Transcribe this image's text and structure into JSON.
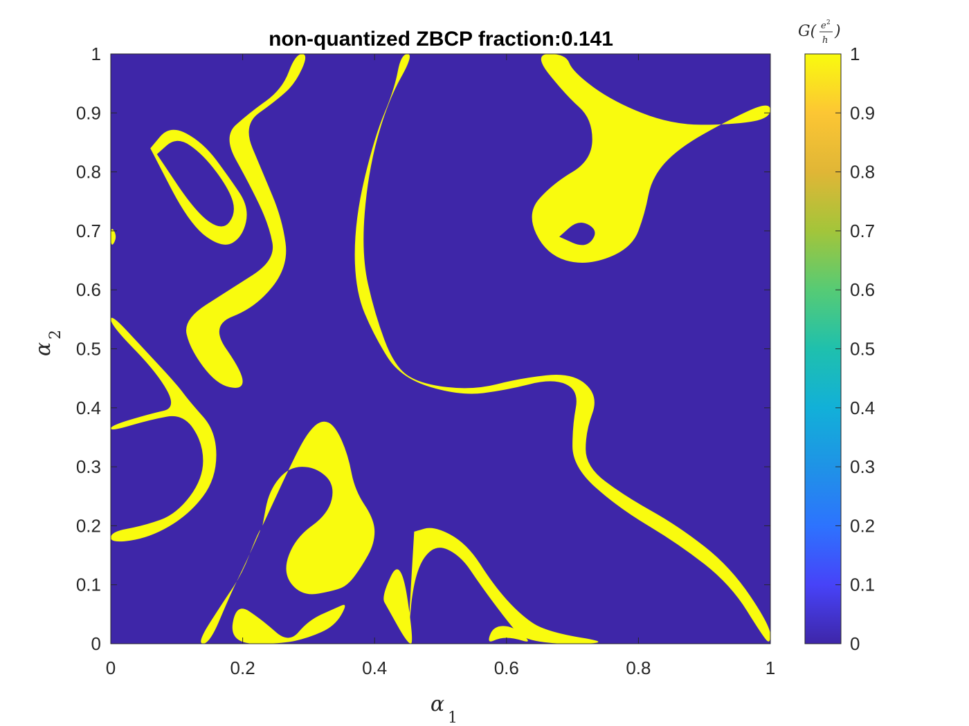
{
  "chart_data": {
    "type": "heatmap",
    "title": "non-quantized ZBCP fraction:0.141",
    "xlabel": {
      "base": "α",
      "sub": "1"
    },
    "ylabel": {
      "base": "α",
      "sub": "2"
    },
    "xlim": [
      0,
      1
    ],
    "ylim": [
      0,
      1
    ],
    "xticks": [
      "0",
      "0.2",
      "0.4",
      "0.6",
      "0.8",
      "1"
    ],
    "yticks": [
      "0",
      "0.1",
      "0.2",
      "0.3",
      "0.4",
      "0.5",
      "0.6",
      "0.7",
      "0.8",
      "0.9",
      "1"
    ],
    "grid": false,
    "colorbar": {
      "label": {
        "prefix": "G(",
        "numerator": "e",
        "exponent": "2",
        "denominator": "h",
        "suffix": ")"
      },
      "range": [
        0,
        1
      ],
      "ticks": [
        "0",
        "0.1",
        "0.2",
        "0.3",
        "0.4",
        "0.5",
        "0.6",
        "0.7",
        "0.8",
        "0.9",
        "1"
      ],
      "colormap": "parula"
    },
    "background_value": 0,
    "region_value": 1,
    "colors": {
      "low": "#3e26a8",
      "high": "#f9fb0e"
    },
    "regions": [
      {
        "name": "left-top-ring",
        "outer": [
          [
            0.06,
            0.84
          ],
          [
            0.09,
            0.88
          ],
          [
            0.14,
            0.85
          ],
          [
            0.18,
            0.79
          ],
          [
            0.21,
            0.74
          ],
          [
            0.2,
            0.69
          ],
          [
            0.17,
            0.67
          ],
          [
            0.12,
            0.71
          ],
          [
            0.06,
            0.84
          ]
        ],
        "inner": [
          [
            0.07,
            0.83
          ],
          [
            0.1,
            0.86
          ],
          [
            0.14,
            0.83
          ],
          [
            0.18,
            0.77
          ],
          [
            0.19,
            0.73
          ],
          [
            0.17,
            0.7
          ],
          [
            0.13,
            0.73
          ],
          [
            0.07,
            0.83
          ]
        ]
      },
      {
        "name": "s-curve-upper",
        "points": [
          [
            0.3,
            1.0
          ],
          [
            0.28,
            0.95
          ],
          [
            0.25,
            0.92
          ],
          [
            0.2,
            0.88
          ],
          [
            0.23,
            0.8
          ],
          [
            0.26,
            0.72
          ],
          [
            0.27,
            0.64
          ],
          [
            0.22,
            0.57
          ],
          [
            0.15,
            0.54
          ],
          [
            0.2,
            0.46
          ],
          [
            0.2,
            0.43
          ],
          [
            0.16,
            0.44
          ],
          [
            0.12,
            0.5
          ],
          [
            0.11,
            0.55
          ],
          [
            0.18,
            0.6
          ],
          [
            0.25,
            0.65
          ],
          [
            0.24,
            0.71
          ],
          [
            0.21,
            0.78
          ],
          [
            0.17,
            0.86
          ],
          [
            0.21,
            0.9
          ],
          [
            0.26,
            0.94
          ],
          [
            0.28,
            1.0
          ]
        ]
      },
      {
        "name": "left-lower-loop",
        "points": [
          [
            0.0,
            0.56
          ],
          [
            0.05,
            0.5
          ],
          [
            0.1,
            0.44
          ],
          [
            0.12,
            0.41
          ],
          [
            0.16,
            0.36
          ],
          [
            0.16,
            0.28
          ],
          [
            0.12,
            0.22
          ],
          [
            0.06,
            0.18
          ],
          [
            0.0,
            0.17
          ],
          [
            0.0,
            0.19
          ],
          [
            0.05,
            0.2
          ],
          [
            0.1,
            0.22
          ],
          [
            0.14,
            0.28
          ],
          [
            0.14,
            0.34
          ],
          [
            0.11,
            0.39
          ],
          [
            0.06,
            0.38
          ],
          [
            0.0,
            0.36
          ],
          [
            0.0,
            0.37
          ],
          [
            0.06,
            0.39
          ],
          [
            0.1,
            0.4
          ],
          [
            0.07,
            0.46
          ],
          [
            0.0,
            0.54
          ]
        ]
      },
      {
        "name": "left-notch",
        "points": [
          [
            0.0,
            0.71
          ],
          [
            0.01,
            0.69
          ],
          [
            0.0,
            0.67
          ]
        ]
      },
      {
        "name": "central-curve",
        "points": [
          [
            0.46,
            1.0
          ],
          [
            0.42,
            0.92
          ],
          [
            0.39,
            0.8
          ],
          [
            0.38,
            0.66
          ],
          [
            0.4,
            0.56
          ],
          [
            0.43,
            0.47
          ],
          [
            0.47,
            0.44
          ],
          [
            0.55,
            0.43
          ],
          [
            0.62,
            0.45
          ],
          [
            0.7,
            0.46
          ],
          [
            0.74,
            0.42
          ],
          [
            0.72,
            0.36
          ],
          [
            0.72,
            0.3
          ],
          [
            0.78,
            0.25
          ],
          [
            0.86,
            0.2
          ],
          [
            0.94,
            0.13
          ],
          [
            1.0,
            0.03
          ],
          [
            1.0,
            0.0
          ],
          [
            0.99,
            0.01
          ],
          [
            0.94,
            0.1
          ],
          [
            0.86,
            0.17
          ],
          [
            0.77,
            0.23
          ],
          [
            0.7,
            0.3
          ],
          [
            0.7,
            0.37
          ],
          [
            0.71,
            0.43
          ],
          [
            0.67,
            0.45
          ],
          [
            0.6,
            0.43
          ],
          [
            0.53,
            0.42
          ],
          [
            0.44,
            0.45
          ],
          [
            0.4,
            0.52
          ],
          [
            0.37,
            0.6
          ],
          [
            0.37,
            0.72
          ],
          [
            0.4,
            0.86
          ],
          [
            0.43,
            0.94
          ],
          [
            0.44,
            1.0
          ]
        ]
      },
      {
        "name": "upper-right-blob",
        "outer": [
          [
            0.64,
            1.0
          ],
          [
            0.69,
            0.93
          ],
          [
            0.73,
            0.89
          ],
          [
            0.73,
            0.82
          ],
          [
            0.67,
            0.78
          ],
          [
            0.63,
            0.73
          ],
          [
            0.66,
            0.66
          ],
          [
            0.72,
            0.64
          ],
          [
            0.79,
            0.67
          ],
          [
            0.81,
            0.73
          ],
          [
            0.82,
            0.79
          ],
          [
            0.86,
            0.84
          ],
          [
            0.94,
            0.89
          ],
          [
            1.0,
            0.92
          ],
          [
            1.0,
            0.89
          ],
          [
            0.94,
            0.88
          ],
          [
            0.85,
            0.88
          ],
          [
            0.76,
            0.92
          ],
          [
            0.7,
            0.97
          ],
          [
            0.69,
            1.0
          ]
        ],
        "inner": [
          [
            0.68,
            0.69
          ],
          [
            0.72,
            0.67
          ],
          [
            0.74,
            0.7
          ],
          [
            0.71,
            0.72
          ],
          [
            0.68,
            0.69
          ]
        ]
      },
      {
        "name": "lower-center-blob",
        "points": [
          [
            0.23,
            0.2
          ],
          [
            0.28,
            0.32
          ],
          [
            0.3,
            0.36
          ],
          [
            0.32,
            0.38
          ],
          [
            0.34,
            0.37
          ],
          [
            0.36,
            0.32
          ],
          [
            0.37,
            0.26
          ],
          [
            0.4,
            0.21
          ],
          [
            0.4,
            0.17
          ],
          [
            0.38,
            0.13
          ],
          [
            0.36,
            0.1
          ],
          [
            0.34,
            0.09
          ],
          [
            0.29,
            0.08
          ],
          [
            0.26,
            0.12
          ],
          [
            0.28,
            0.18
          ],
          [
            0.33,
            0.22
          ],
          [
            0.34,
            0.27
          ],
          [
            0.31,
            0.3
          ],
          [
            0.27,
            0.3
          ],
          [
            0.24,
            0.26
          ],
          [
            0.23,
            0.2
          ]
        ]
      },
      {
        "name": "lower-left-arc",
        "points": [
          [
            0.13,
            0.0
          ],
          [
            0.17,
            0.07
          ],
          [
            0.2,
            0.12
          ],
          [
            0.22,
            0.18
          ],
          [
            0.23,
            0.2
          ],
          [
            0.21,
            0.15
          ],
          [
            0.18,
            0.08
          ],
          [
            0.15,
            0.0
          ]
        ]
      },
      {
        "name": "lower-arc-2",
        "points": [
          [
            0.18,
            0.0
          ],
          [
            0.19,
            0.07
          ],
          [
            0.23,
            0.04
          ],
          [
            0.27,
            0.0
          ],
          [
            0.3,
            0.04
          ],
          [
            0.34,
            0.06
          ],
          [
            0.36,
            0.07
          ],
          [
            0.34,
            0.03
          ],
          [
            0.3,
            0.01
          ],
          [
            0.26,
            0.0
          ]
        ]
      },
      {
        "name": "lower-spike",
        "points": [
          [
            0.41,
            0.08
          ],
          [
            0.44,
            0.15
          ],
          [
            0.46,
            0.0
          ],
          [
            0.45,
            0.0
          ],
          [
            0.42,
            0.06
          ]
        ]
      },
      {
        "name": "lower-right-hook",
        "points": [
          [
            0.46,
            0.19
          ],
          [
            0.49,
            0.2
          ],
          [
            0.54,
            0.17
          ],
          [
            0.58,
            0.1
          ],
          [
            0.62,
            0.05
          ],
          [
            0.66,
            0.02
          ],
          [
            0.77,
            0.0
          ],
          [
            0.63,
            0.0
          ],
          [
            0.6,
            0.04
          ],
          [
            0.56,
            0.1
          ],
          [
            0.53,
            0.15
          ],
          [
            0.49,
            0.17
          ],
          [
            0.46,
            0.12
          ],
          [
            0.45,
            0.0
          ],
          [
            0.46,
            0.19
          ]
        ]
      },
      {
        "name": "bottom-bump",
        "points": [
          [
            0.57,
            0.0
          ],
          [
            0.58,
            0.03
          ],
          [
            0.61,
            0.03
          ],
          [
            0.64,
            0.0
          ],
          [
            0.61,
            0.01
          ],
          [
            0.59,
            0.01
          ]
        ]
      }
    ]
  }
}
